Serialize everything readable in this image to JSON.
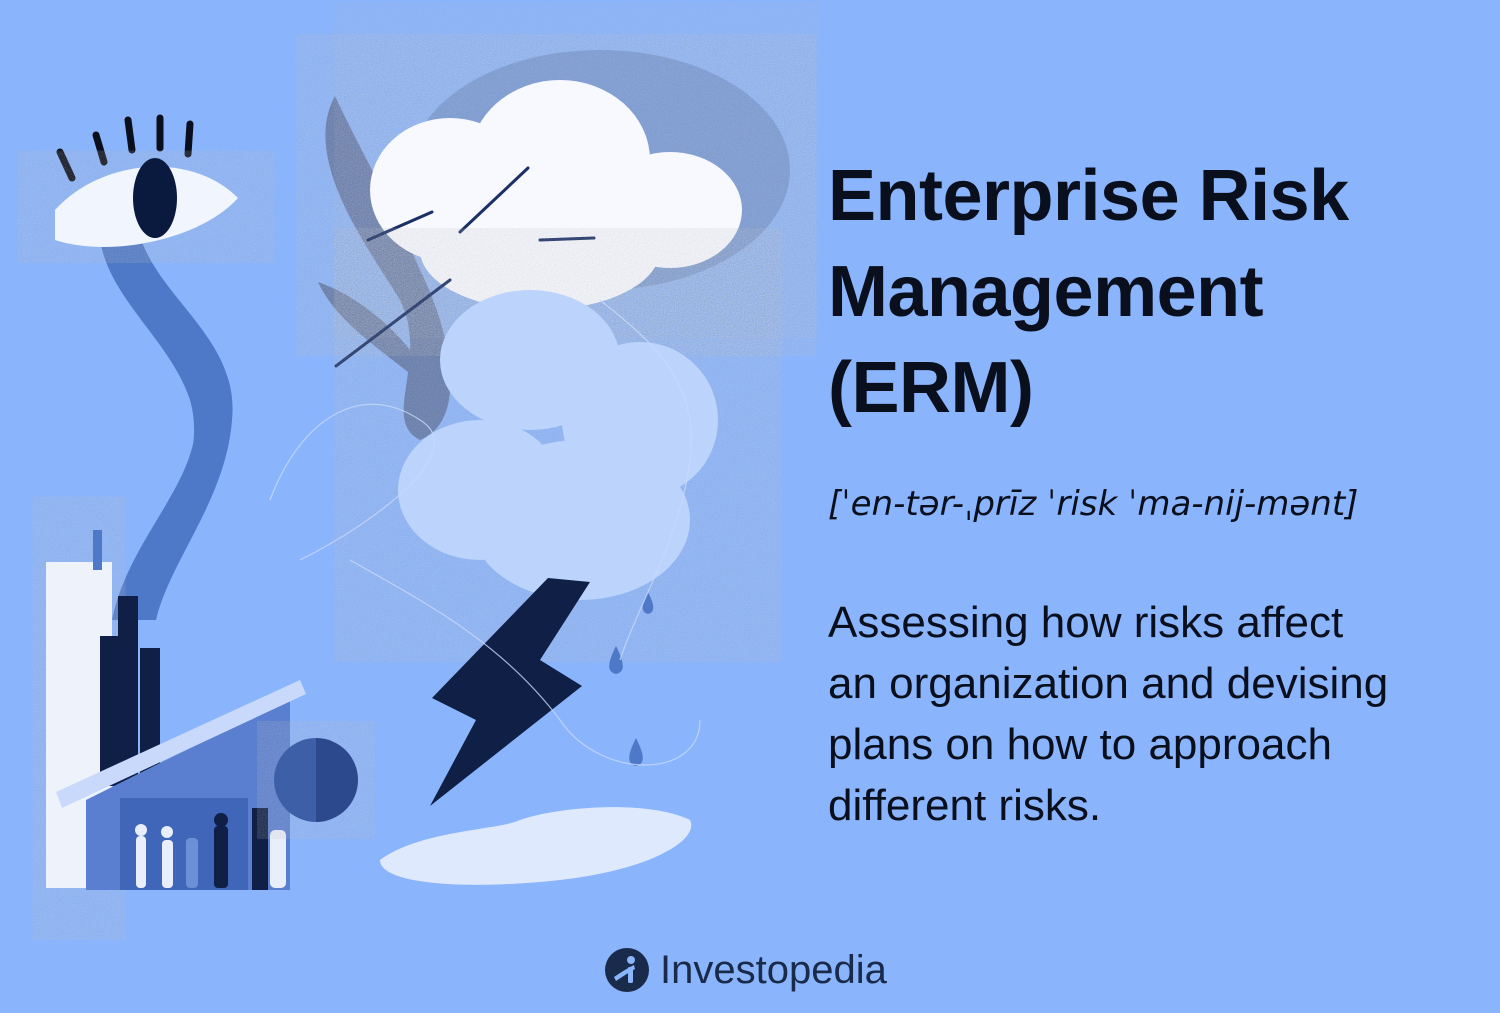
{
  "title": {
    "line1": "Enterprise Risk",
    "line2": "Management",
    "line3": "(ERM)"
  },
  "pronunciation": "[ˈen-tər-ˌprīz ˈrisk ˈma-nij-mənt]",
  "description": {
    "line1": "Assessing how risks affect",
    "line2": "an organization and devising",
    "line3": "plans on how to approach",
    "line4": "different risks."
  },
  "brand": {
    "name": "Investopedia",
    "logo_icon": "investopedia-logo-icon"
  },
  "colors": {
    "background": "#8ab4fc",
    "ink": "#0a0f1e",
    "mid_blue": "#4e79c8",
    "white": "#ffffff"
  }
}
